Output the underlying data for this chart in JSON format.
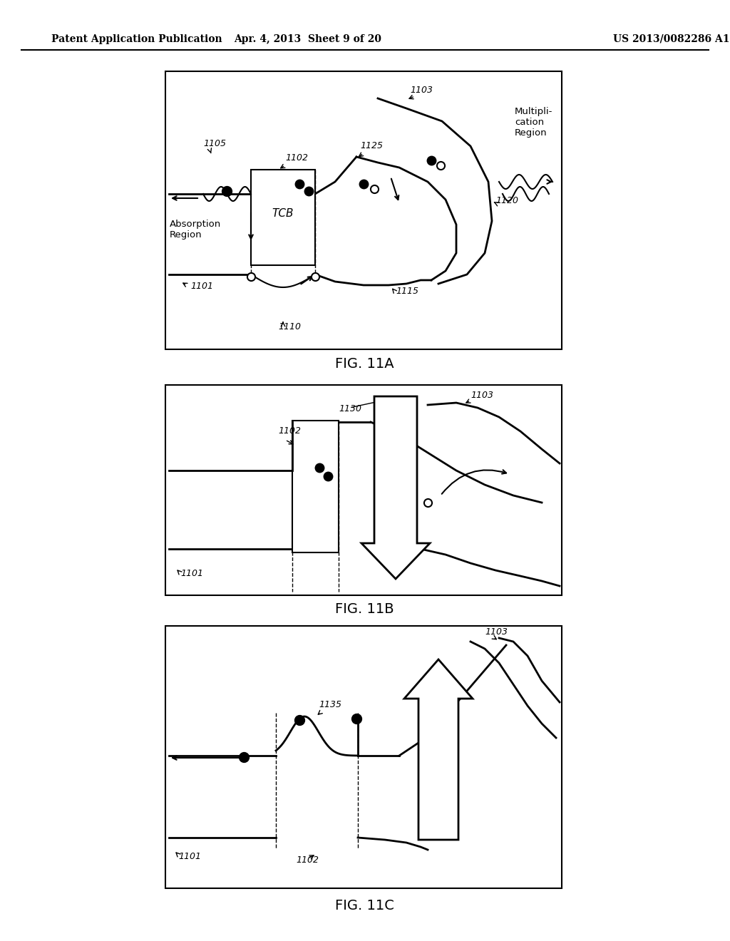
{
  "header_left": "Patent Application Publication",
  "header_center": "Apr. 4, 2013  Sheet 9 of 20",
  "header_right": "US 2013/0082286 A1",
  "fig_labels": [
    "FIG. 11A",
    "FIG. 11B",
    "FIG. 11C"
  ],
  "background_color": "#ffffff",
  "line_color": "#000000",
  "text_color": "#000000"
}
